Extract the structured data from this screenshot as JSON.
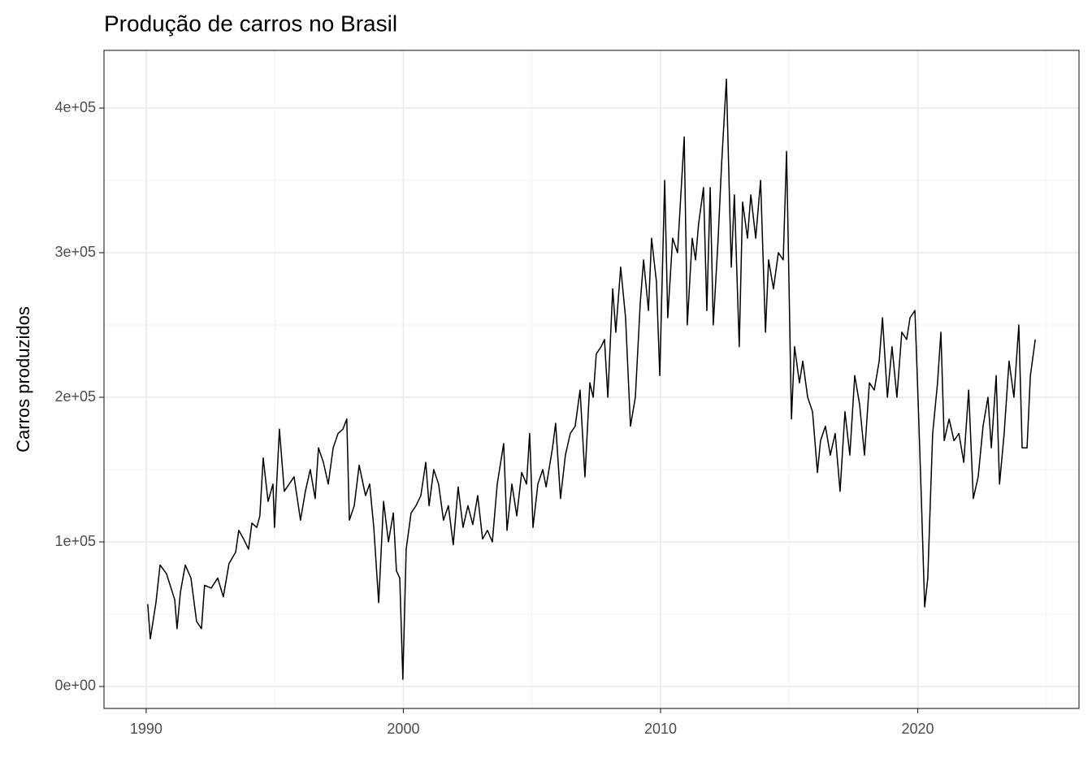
{
  "chart_data": {
    "type": "line",
    "title": "Produção de carros no Brasil",
    "y_label": "Carros produzidos",
    "xlim": [
      1988.36,
      2026.27
    ],
    "ylim": [
      -15170,
      439900
    ],
    "xticks": [
      1990,
      2000,
      2010,
      2020
    ],
    "yticks": [
      {
        "value": 0,
        "label": "0e+00"
      },
      {
        "value": 100000,
        "label": "1e+05"
      },
      {
        "value": 200000,
        "label": "2e+05"
      },
      {
        "value": 300000,
        "label": "3e+05"
      },
      {
        "value": 400000,
        "label": "4e+05"
      }
    ],
    "x_minor_grid": [
      1995,
      2005,
      2015,
      2025
    ],
    "y_minor_grid": [
      50000,
      150000,
      250000,
      350000
    ],
    "grid": true,
    "series": [
      {
        "color": "#000000",
        "x": [
          1990.06,
          1990.16,
          1990.38,
          1990.54,
          1990.79,
          1991.11,
          1991.2,
          1991.33,
          1991.52,
          1991.74,
          1991.96,
          1992.15,
          1992.27,
          1992.53,
          1992.78,
          1993.0,
          1993.22,
          1993.48,
          1993.6,
          1993.79,
          1993.98,
          1994.11,
          1994.3,
          1994.42,
          1994.55,
          1994.74,
          1994.93,
          1994.99,
          1995.18,
          1995.37,
          1995.56,
          1995.75,
          1996.0,
          1996.19,
          1996.38,
          1996.57,
          1996.7,
          1996.89,
          1997.08,
          1997.27,
          1997.46,
          1997.65,
          1997.8,
          1997.9,
          1998.09,
          1998.28,
          1998.53,
          1998.69,
          1998.85,
          1999.04,
          1999.23,
          1999.42,
          1999.61,
          1999.73,
          1999.86,
          1999.98,
          2000.11,
          2000.3,
          2000.49,
          2000.68,
          2000.87,
          2001.0,
          2001.18,
          2001.37,
          2001.56,
          2001.75,
          2001.94,
          2002.13,
          2002.32,
          2002.51,
          2002.7,
          2002.89,
          2003.08,
          2003.27,
          2003.46,
          2003.65,
          2003.9,
          2004.03,
          2004.22,
          2004.41,
          2004.6,
          2004.79,
          2004.91,
          2005.04,
          2005.23,
          2005.42,
          2005.55,
          2005.8,
          2005.92,
          2006.11,
          2006.3,
          2006.49,
          2006.68,
          2006.87,
          2007.06,
          2007.25,
          2007.38,
          2007.5,
          2007.69,
          2007.82,
          2007.95,
          2008.14,
          2008.26,
          2008.45,
          2008.64,
          2008.83,
          2009.02,
          2009.21,
          2009.34,
          2009.53,
          2009.65,
          2009.84,
          2009.97,
          2010.16,
          2010.28,
          2010.47,
          2010.66,
          2010.92,
          2011.04,
          2011.23,
          2011.36,
          2011.48,
          2011.67,
          2011.8,
          2011.93,
          2012.05,
          2012.24,
          2012.37,
          2012.56,
          2012.75,
          2012.87,
          2013.06,
          2013.19,
          2013.38,
          2013.51,
          2013.7,
          2013.89,
          2014.08,
          2014.2,
          2014.39,
          2014.58,
          2014.77,
          2014.9,
          2015.09,
          2015.21,
          2015.4,
          2015.53,
          2015.72,
          2015.91,
          2016.1,
          2016.22,
          2016.41,
          2016.6,
          2016.79,
          2016.98,
          2017.17,
          2017.36,
          2017.55,
          2017.74,
          2017.93,
          2018.12,
          2018.31,
          2018.5,
          2018.63,
          2018.82,
          2019.0,
          2019.19,
          2019.38,
          2019.57,
          2019.7,
          2019.89,
          2020.02,
          2020.14,
          2020.27,
          2020.39,
          2020.58,
          2020.77,
          2020.9,
          2021.03,
          2021.22,
          2021.41,
          2021.6,
          2021.79,
          2021.98,
          2022.16,
          2022.35,
          2022.54,
          2022.73,
          2022.86,
          2023.05,
          2023.18,
          2023.36,
          2023.55,
          2023.74,
          2023.93,
          2024.06,
          2024.25,
          2024.38,
          2024.57
        ],
        "values": [
          57000,
          33000,
          58000,
          84000,
          78000,
          60000,
          40000,
          65000,
          84000,
          75000,
          45000,
          40000,
          70000,
          68000,
          75000,
          62000,
          85000,
          93000,
          108000,
          102000,
          95000,
          113000,
          110000,
          118000,
          158000,
          128000,
          140000,
          110000,
          178000,
          135000,
          140000,
          145000,
          115000,
          135000,
          150000,
          130000,
          165000,
          155000,
          140000,
          165000,
          175000,
          178000,
          185000,
          115000,
          125000,
          153000,
          132000,
          140000,
          110000,
          58000,
          128000,
          100000,
          120000,
          80000,
          75000,
          5000,
          95000,
          120000,
          125000,
          132000,
          155000,
          125000,
          150000,
          140000,
          115000,
          125000,
          98000,
          138000,
          110000,
          125000,
          112000,
          132000,
          102000,
          108000,
          100000,
          140000,
          168000,
          108000,
          140000,
          118000,
          148000,
          140000,
          175000,
          110000,
          140000,
          150000,
          138000,
          165000,
          182000,
          130000,
          160000,
          175000,
          180000,
          205000,
          145000,
          210000,
          200000,
          230000,
          235000,
          240000,
          200000,
          275000,
          245000,
          290000,
          255000,
          180000,
          200000,
          265000,
          295000,
          260000,
          310000,
          280000,
          215000,
          350000,
          255000,
          310000,
          300000,
          380000,
          250000,
          310000,
          295000,
          320000,
          345000,
          260000,
          345000,
          250000,
          310000,
          360000,
          420000,
          290000,
          340000,
          235000,
          335000,
          310000,
          340000,
          310000,
          350000,
          245000,
          295000,
          275000,
          300000,
          295000,
          370000,
          185000,
          235000,
          210000,
          225000,
          200000,
          190000,
          148000,
          170000,
          180000,
          160000,
          175000,
          135000,
          190000,
          160000,
          215000,
          195000,
          160000,
          210000,
          205000,
          225000,
          255000,
          200000,
          235000,
          200000,
          245000,
          240000,
          255000,
          260000,
          195000,
          130000,
          55000,
          75000,
          175000,
          210000,
          245000,
          170000,
          185000,
          170000,
          175000,
          155000,
          205000,
          130000,
          145000,
          180000,
          200000,
          165000,
          215000,
          140000,
          175000,
          225000,
          200000,
          250000,
          165000,
          165000,
          215000,
          240000
        ]
      }
    ]
  }
}
